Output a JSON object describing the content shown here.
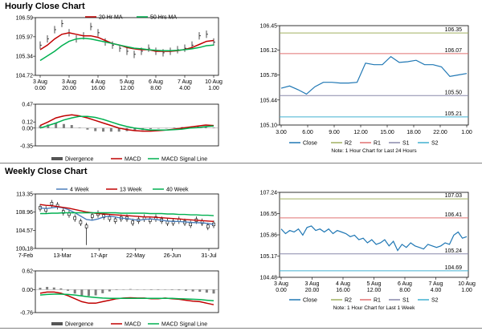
{
  "sections": {
    "hourly_title": "Hourly Close Chart",
    "weekly_title": "Weekly Close Chart"
  },
  "colors": {
    "ma_short": "#c00000",
    "ma_long": "#00b050",
    "ma_4w": "#4a7ebb",
    "close": "#1f77b4",
    "r2": "#a0b060",
    "r1": "#e07070",
    "s1": "#8888aa",
    "s2": "#40b0d0",
    "hist": "#7f7f7f"
  },
  "chart_data": [
    {
      "id": "hourly_price",
      "type": "line",
      "legend": [
        "20 Hr MA",
        "50 Hrs MA"
      ],
      "y_ticks": [
        "106.59",
        "105.97",
        "105.34",
        "104.72"
      ],
      "ylim": [
        104.72,
        106.59
      ],
      "x_ticks": [
        [
          "3 Aug",
          "0.00"
        ],
        [
          "3 Aug",
          "20.00"
        ],
        [
          "4 Aug",
          "16.00"
        ],
        [
          "5 Aug",
          "12.00"
        ],
        [
          "6 Aug",
          "8.00"
        ],
        [
          "7 Aug",
          "4.00"
        ],
        [
          "10 Aug",
          "1.00"
        ]
      ],
      "series": [
        {
          "name": "Close",
          "values": [
            105.7,
            105.9,
            106.2,
            106.4,
            106.1,
            105.9,
            106.0,
            106.3,
            106.1,
            105.8,
            105.7,
            105.6,
            105.5,
            105.4,
            105.5,
            105.6,
            105.5,
            105.45,
            105.5,
            105.55,
            105.6,
            105.7,
            106.0,
            106.05,
            105.8
          ]
        },
        {
          "name": "20 Hr MA",
          "values": [
            105.55,
            105.7,
            105.9,
            106.05,
            106.1,
            106.05,
            106.0,
            106.0,
            105.95,
            105.85,
            105.75,
            105.7,
            105.62,
            105.58,
            105.55,
            105.55,
            105.5,
            105.5,
            105.5,
            105.52,
            105.56,
            105.62,
            105.72,
            105.82,
            105.85
          ]
        },
        {
          "name": "50 Hrs MA",
          "values": [
            105.2,
            105.35,
            105.5,
            105.68,
            105.82,
            105.9,
            105.92,
            105.9,
            105.85,
            105.8,
            105.75,
            105.7,
            105.65,
            105.6,
            105.58,
            105.55,
            105.53,
            105.52,
            105.52,
            105.53,
            105.55,
            105.58,
            105.62,
            105.68,
            105.7
          ]
        }
      ]
    },
    {
      "id": "hourly_macd",
      "type": "line",
      "legend": [
        "Divergence",
        "MACD",
        "MACD Signal Line"
      ],
      "y_ticks": [
        "0.47",
        "0.12",
        "0.00",
        "-0.35"
      ],
      "ylim": [
        -0.35,
        0.47
      ],
      "series": [
        {
          "name": "MACD",
          "values": [
            0.05,
            0.12,
            0.2,
            0.24,
            0.26,
            0.24,
            0.2,
            0.15,
            0.1,
            0.05,
            0.0,
            -0.03,
            -0.05,
            -0.06,
            -0.06,
            -0.05,
            -0.04,
            -0.02,
            0.0,
            0.02,
            0.04,
            0.06,
            0.05
          ]
        },
        {
          "name": "MACD Signal Line",
          "values": [
            0.0,
            0.05,
            0.1,
            0.16,
            0.2,
            0.23,
            0.23,
            0.21,
            0.17,
            0.12,
            0.07,
            0.03,
            0.0,
            -0.02,
            -0.04,
            -0.04,
            -0.04,
            -0.03,
            -0.02,
            0.0,
            0.01,
            0.03,
            0.04
          ]
        },
        {
          "name": "Divergence",
          "values": [
            0.05,
            0.07,
            0.1,
            0.08,
            0.06,
            0.01,
            -0.03,
            -0.06,
            -0.07,
            -0.07,
            -0.07,
            -0.06,
            -0.05,
            -0.04,
            -0.02,
            -0.01,
            0.0,
            0.01,
            0.02,
            0.02,
            0.03,
            0.03,
            0.01
          ]
        }
      ]
    },
    {
      "id": "hourly_pivot",
      "type": "line",
      "y_ticks": [
        "106.45",
        "106.12",
        "105.78",
        "105.44",
        "105.10"
      ],
      "ylim": [
        105.1,
        106.45
      ],
      "x_ticks": [
        "3.00",
        "6.00",
        "9.00",
        "12.00",
        "15.00",
        "18.00",
        "22.00",
        "1.00"
      ],
      "levels": [
        {
          "name": "R2",
          "value": 106.35,
          "label": "106.35"
        },
        {
          "name": "R1",
          "value": 106.07,
          "label": "106.07"
        },
        {
          "name": "S1",
          "value": 105.5,
          "label": "105.50"
        },
        {
          "name": "S2",
          "value": 105.21,
          "label": "105.21"
        }
      ],
      "series": [
        {
          "name": "Close",
          "values": [
            105.6,
            105.63,
            105.58,
            105.52,
            105.62,
            105.68,
            105.68,
            105.67,
            105.67,
            105.68,
            105.94,
            105.92,
            105.92,
            106.03,
            105.95,
            105.96,
            105.98,
            105.92,
            105.92,
            105.89,
            105.76,
            105.78,
            105.8
          ]
        }
      ],
      "legend": [
        "Close",
        "R2",
        "R1",
        "S1",
        "S2"
      ],
      "note": "Note: 1 Hour Chart for Last 24 Hours"
    },
    {
      "id": "weekly_price",
      "type": "line",
      "legend": [
        "4 Week",
        "13 Week",
        "40 Week"
      ],
      "y_ticks": [
        "113.35",
        "108.96",
        "104.57",
        "100.18"
      ],
      "ylim": [
        100.18,
        113.35
      ],
      "x_ticks": [
        "7-Feb",
        "13-Mar",
        "17-Apr",
        "22-May",
        "26-Jun",
        "31-Jul"
      ],
      "series": [
        {
          "name": "Close",
          "values": [
            110.0,
            109.5,
            111.0,
            110.5,
            109.0,
            108.5,
            107.5,
            106.5,
            105.5,
            108.0,
            108.5,
            108.0,
            107.5,
            107.0,
            107.5,
            107.5,
            106.5,
            107.0,
            107.5,
            107.0,
            107.5,
            107.0,
            106.5,
            106.5,
            107.0,
            106.5,
            106.0,
            107.0,
            106.5,
            105.5,
            106.0
          ]
        },
        {
          "name": "4 Week",
          "values": [
            110.0,
            109.8,
            110.0,
            110.2,
            110.0,
            109.5,
            108.8,
            108.0,
            107.2,
            107.0,
            107.3,
            107.8,
            108.0,
            107.8,
            107.5,
            107.4,
            107.2,
            107.0,
            107.2,
            107.3,
            107.2,
            107.0,
            106.8,
            106.7,
            106.7,
            106.6,
            106.5,
            106.4,
            106.4,
            106.2,
            106.0
          ]
        },
        {
          "name": "13 Week",
          "values": [
            110.8,
            110.6,
            110.5,
            110.3,
            110.1,
            109.9,
            109.6,
            109.3,
            109.0,
            108.8,
            108.6,
            108.5,
            108.4,
            108.3,
            108.2,
            108.1,
            108.0,
            107.9,
            107.8,
            107.8,
            107.7,
            107.6,
            107.5,
            107.4,
            107.3,
            107.2,
            107.1,
            107.0,
            106.9,
            106.8,
            106.7
          ]
        },
        {
          "name": "40 Week",
          "values": [
            108.6,
            108.6,
            108.7,
            108.7,
            108.8,
            108.8,
            108.8,
            108.8,
            108.8,
            108.8,
            108.8,
            108.8,
            108.8,
            108.8,
            108.7,
            108.7,
            108.7,
            108.7,
            108.7,
            108.6,
            108.6,
            108.6,
            108.5,
            108.5,
            108.4,
            108.4,
            108.3,
            108.3,
            108.2,
            108.2,
            108.1
          ]
        }
      ]
    },
    {
      "id": "weekly_macd",
      "type": "line",
      "legend": [
        "Divergence",
        "MACD",
        "MACD Signal Line"
      ],
      "y_ticks": [
        "0.62",
        "0.00",
        "-0.76"
      ],
      "ylim": [
        -0.76,
        0.62
      ],
      "series": [
        {
          "name": "MACD",
          "values": [
            -0.12,
            -0.08,
            -0.08,
            -0.12,
            -0.2,
            -0.3,
            -0.4,
            -0.45,
            -0.45,
            -0.4,
            -0.35,
            -0.3,
            -0.28,
            -0.27,
            -0.28,
            -0.28,
            -0.3,
            -0.3,
            -0.28,
            -0.3,
            -0.32,
            -0.35,
            -0.38,
            -0.4,
            -0.45,
            -0.5
          ]
        },
        {
          "name": "MACD Signal Line",
          "values": [
            -0.18,
            -0.16,
            -0.15,
            -0.15,
            -0.16,
            -0.18,
            -0.21,
            -0.24,
            -0.26,
            -0.28,
            -0.29,
            -0.29,
            -0.29,
            -0.29,
            -0.29,
            -0.29,
            -0.29,
            -0.29,
            -0.29,
            -0.29,
            -0.3,
            -0.31,
            -0.32,
            -0.33,
            -0.35,
            -0.37
          ]
        },
        {
          "name": "Divergence",
          "values": [
            0.06,
            0.09,
            0.07,
            0.04,
            -0.04,
            -0.13,
            -0.19,
            -0.21,
            -0.19,
            -0.12,
            -0.06,
            -0.01,
            0.01,
            0.02,
            0.01,
            0.01,
            -0.01,
            -0.01,
            0.01,
            -0.01,
            -0.02,
            -0.04,
            -0.06,
            -0.07,
            -0.1,
            -0.13
          ]
        }
      ]
    },
    {
      "id": "weekly_pivot",
      "type": "line",
      "y_ticks": [
        "107.24",
        "106.55",
        "105.86",
        "105.17",
        "104.48"
      ],
      "ylim": [
        104.48,
        107.24
      ],
      "x_ticks": [
        [
          "3 Aug",
          "0.00"
        ],
        [
          "3 Aug",
          "20.00"
        ],
        [
          "4 Aug",
          "16.00"
        ],
        [
          "5 Aug",
          "12.00"
        ],
        [
          "6 Aug",
          "8.00"
        ],
        [
          "7 Aug",
          "4.00"
        ],
        [
          "10 Aug",
          "1.00"
        ]
      ],
      "levels": [
        {
          "name": "R2",
          "value": 107.03,
          "label": "107.03"
        },
        {
          "name": "R1",
          "value": 106.41,
          "label": "106.41"
        },
        {
          "name": "S1",
          "value": 105.24,
          "label": "105.24"
        },
        {
          "name": "S2",
          "value": 104.69,
          "label": "104.69"
        }
      ],
      "series": [
        {
          "name": "Close",
          "values": [
            106.05,
            105.9,
            106.0,
            105.95,
            106.05,
            105.85,
            106.1,
            106.15,
            106.0,
            106.05,
            105.95,
            106.05,
            105.9,
            106.0,
            105.95,
            105.9,
            105.8,
            105.85,
            105.7,
            105.75,
            105.6,
            105.7,
            105.55,
            105.6,
            105.7,
            105.5,
            105.65,
            105.35,
            105.55,
            105.45,
            105.6,
            105.5,
            105.45,
            105.4,
            105.55,
            105.5,
            105.45,
            105.5,
            105.6,
            105.55,
            105.85,
            105.95,
            105.75,
            105.8
          ]
        }
      ],
      "legend": [
        "Close",
        "R2",
        "R1",
        "S1",
        "S2"
      ],
      "note": "Note: 1 Hour Chart for Last 1 Week"
    }
  ]
}
